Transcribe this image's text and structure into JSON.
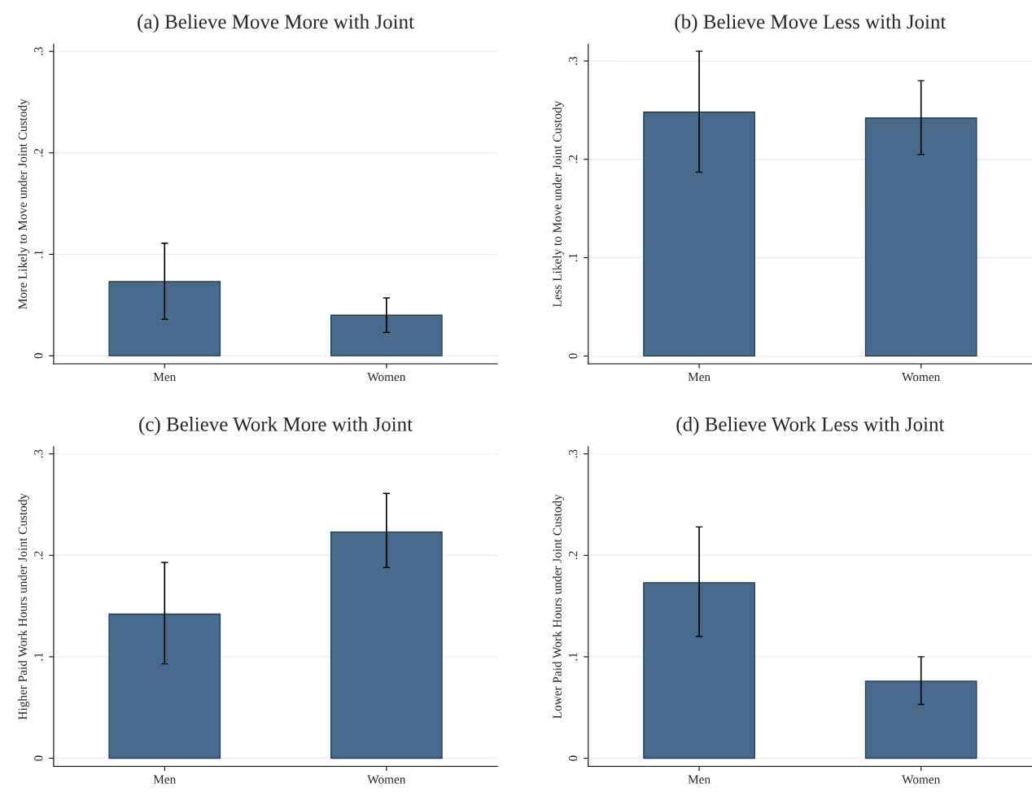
{
  "chart_data": [
    {
      "type": "bar",
      "title": "(a) Believe Move More with Joint",
      "ylabel": "More Likely to Move under Joint Custody",
      "categories": [
        "Men",
        "Women"
      ],
      "values": [
        0.073,
        0.04
      ],
      "errors": [
        [
          0.036,
          0.111
        ],
        [
          0.023,
          0.057
        ]
      ],
      "color": "#486a8c",
      "ylim": [
        -0.008,
        0.307
      ],
      "yticks": [
        0,
        {
          "value": 0.1,
          "label": ".1"
        },
        {
          "value": 0.2,
          "label": ".2"
        },
        {
          "value": 0.3,
          "label": ".3"
        }
      ],
      "grid": "y"
    },
    {
      "type": "bar",
      "title": "(b) Believe Move Less with Joint",
      "ylabel": "Less Likely to Move under Joint Custody",
      "categories": [
        "Men",
        "Women"
      ],
      "values": [
        0.248,
        0.242
      ],
      "errors": [
        [
          0.187,
          0.31
        ],
        [
          0.205,
          0.28
        ]
      ],
      "color": "#486a8c",
      "ylim": [
        -0.008,
        0.317
      ],
      "yticks": [
        0,
        {
          "value": 0.1,
          "label": ".1"
        },
        {
          "value": 0.2,
          "label": ".2"
        },
        {
          "value": 0.3,
          "label": ".3"
        }
      ],
      "grid": "y"
    },
    {
      "type": "bar",
      "title": "(c) Believe Work More with Joint",
      "ylabel": "Higher Paid Work Hours under Joint Custody",
      "categories": [
        "Men",
        "Women"
      ],
      "values": [
        0.142,
        0.223
      ],
      "errors": [
        [
          0.093,
          0.193
        ],
        [
          0.188,
          0.261
        ]
      ],
      "color": "#486a8c",
      "ylim": [
        -0.008,
        0.307
      ],
      "yticks": [
        0,
        {
          "value": 0.1,
          "label": ".1"
        },
        {
          "value": 0.2,
          "label": ".2"
        },
        {
          "value": 0.3,
          "label": ".3"
        }
      ],
      "grid": "y"
    },
    {
      "type": "bar",
      "title": "(d) Believe Work Less with Joint",
      "ylabel": "Lower Paid Work Hours under Joint Custody",
      "categories": [
        "Men",
        "Women"
      ],
      "values": [
        0.173,
        0.076
      ],
      "errors": [
        [
          0.12,
          0.228
        ],
        [
          0.053,
          0.1
        ]
      ],
      "color": "#486a8c",
      "ylim": [
        -0.008,
        0.307
      ],
      "yticks": [
        0,
        {
          "value": 0.1,
          "label": ".1"
        },
        {
          "value": 0.2,
          "label": ".2"
        },
        {
          "value": 0.3,
          "label": ".3"
        }
      ],
      "grid": "y"
    }
  ]
}
